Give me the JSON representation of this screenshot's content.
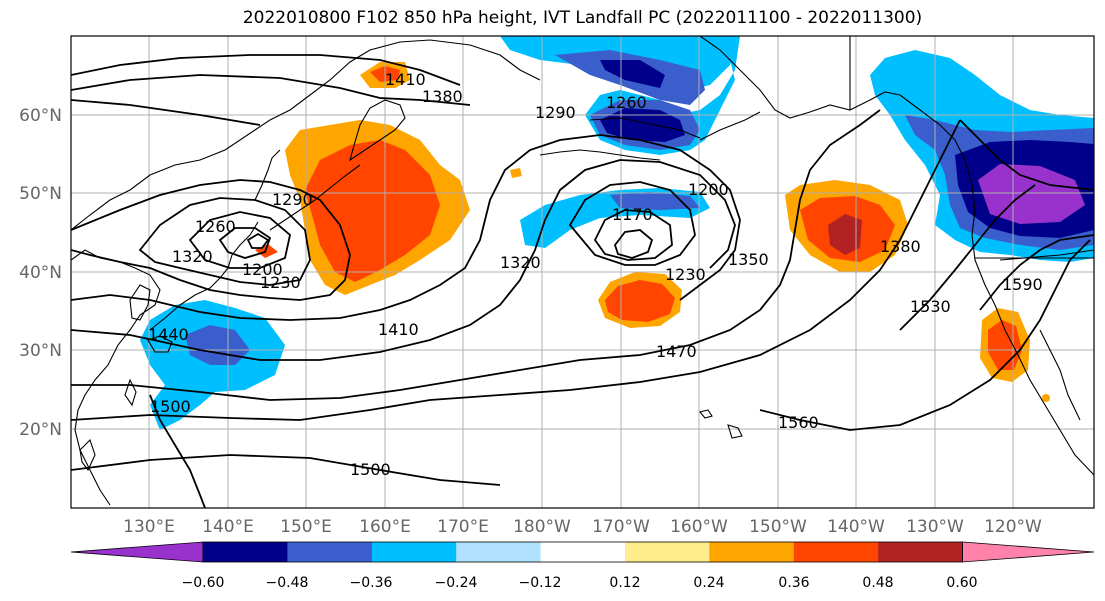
{
  "title": "2022010800 F102 850 hPa height, IVT Landfall PC (2022011100 - 2022011300)",
  "lon_ticks": [
    "130°E",
    "140°E",
    "150°E",
    "160°E",
    "170°E",
    "180°W",
    "170°W",
    "160°W",
    "150°W",
    "140°W",
    "130°W",
    "120°W"
  ],
  "lat_ticks": [
    "60°N",
    "50°N",
    "40°N",
    "30°N",
    "20°N"
  ],
  "colorbar": {
    "ticks": [
      "−0.60",
      "−0.48",
      "−0.36",
      "−0.24",
      "−0.12",
      "0.12",
      "0.24",
      "0.36",
      "0.48",
      "0.60"
    ],
    "colors": [
      "#9932CC",
      "#00008B",
      "#3A5FCD",
      "#00BFFF",
      "#B0E2FF",
      "#FFFFFF",
      "#FFEC8B",
      "#FFA500",
      "#FF4500",
      "#B22222",
      "#FF82AB"
    ]
  },
  "contour_labels": [
    "1410",
    "1380",
    "1290",
    "1260",
    "1290",
    "1260",
    "1200",
    "1230",
    "1320",
    "1170",
    "1230",
    "1200",
    "1350",
    "1380",
    "1530",
    "1590",
    "1320",
    "1440",
    "1410",
    "1470",
    "1500",
    "1500",
    "1560"
  ]
}
